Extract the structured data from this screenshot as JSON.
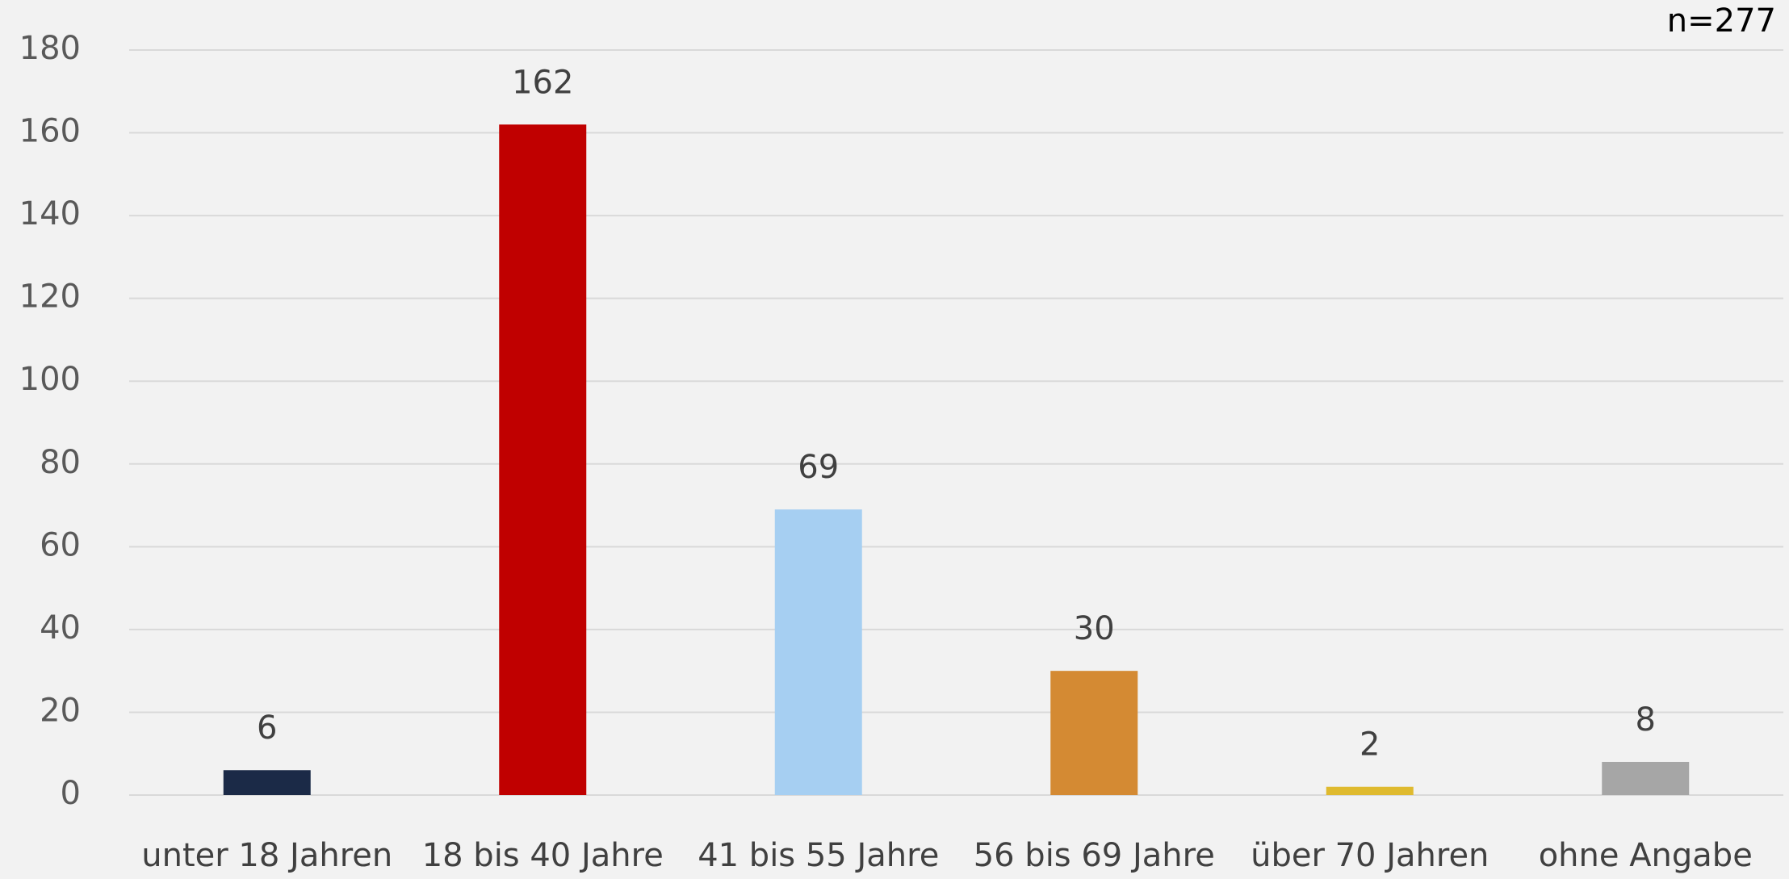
{
  "chart_data": {
    "type": "bar",
    "annotation": "n=277",
    "categories": [
      "unter 18 Jahren",
      "18 bis 40 Jahre",
      "41 bis 55 Jahre",
      "56 bis 69 Jahre",
      "über 70 Jahren",
      "ohne Angabe"
    ],
    "values": [
      6,
      162,
      69,
      30,
      2,
      8
    ],
    "colors": [
      "#1b2a47",
      "#c00000",
      "#a6cff2",
      "#d48a33",
      "#dfba2f",
      "#a6a6a6"
    ],
    "ylim": [
      0,
      180
    ],
    "yticks": [
      0,
      20,
      40,
      60,
      80,
      100,
      120,
      140,
      160,
      180
    ],
    "grid": true
  }
}
